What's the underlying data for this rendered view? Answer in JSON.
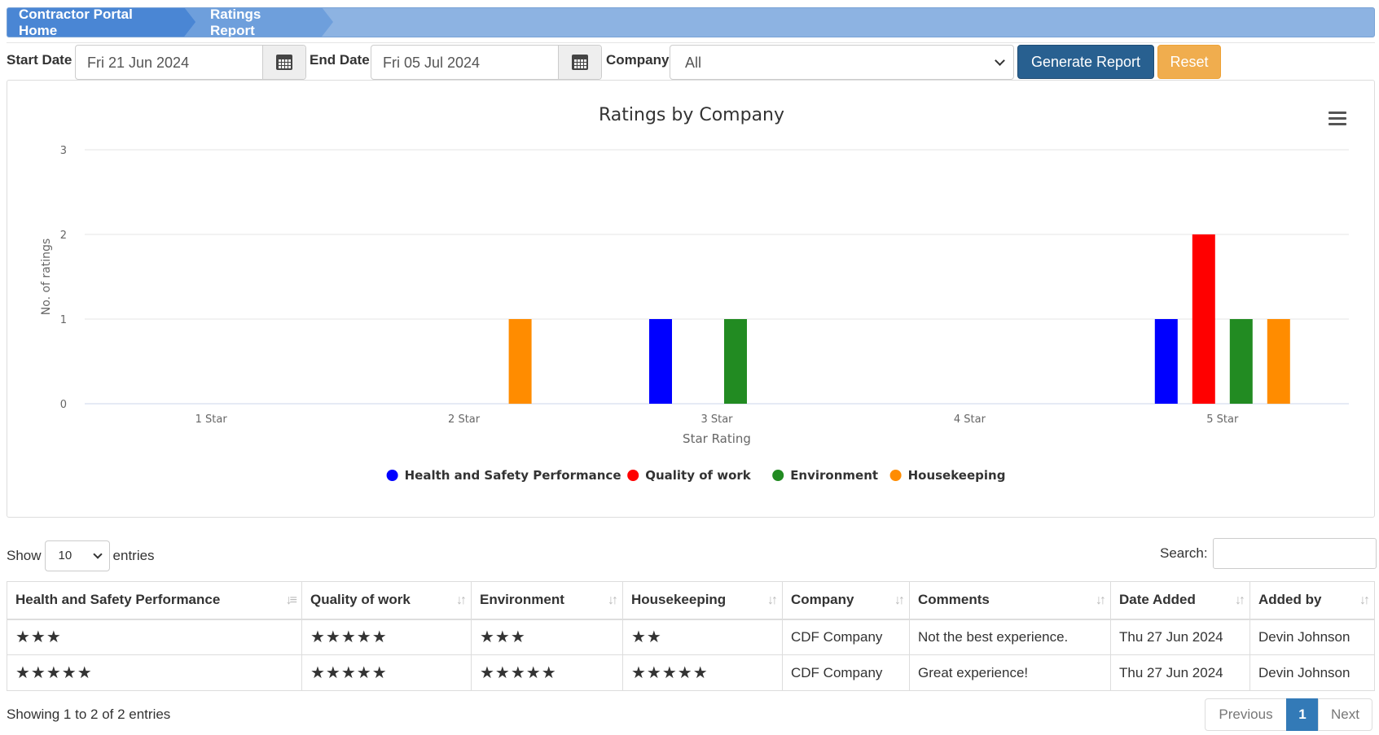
{
  "breadcrumb": {
    "home": "Contractor Portal Home",
    "current": "Ratings Report"
  },
  "filters": {
    "start_label": "Start Date",
    "start_value": "Fri 21 Jun 2024",
    "end_label": "End Date",
    "end_value": "Fri 05 Jul 2024",
    "company_label": "Company",
    "company_value": "All",
    "generate_label": "Generate Report",
    "reset_label": "Reset"
  },
  "chart_data": {
    "type": "bar",
    "title": "Ratings by Company",
    "xlabel": "Star Rating",
    "ylabel": "No. of ratings",
    "ylim": [
      0,
      3
    ],
    "yticks": [
      0,
      1,
      2,
      3
    ],
    "categories": [
      "1 Star",
      "2 Star",
      "3 Star",
      "4 Star",
      "5 Star"
    ],
    "series": [
      {
        "name": "Health and Safety Performance",
        "color": "#0000ff",
        "values": [
          0,
          0,
          1,
          0,
          1
        ]
      },
      {
        "name": "Quality of work",
        "color": "#ff0000",
        "values": [
          0,
          0,
          0,
          0,
          2
        ]
      },
      {
        "name": "Environment",
        "color": "#228b22",
        "values": [
          0,
          0,
          1,
          0,
          1
        ]
      },
      {
        "name": "Housekeeping",
        "color": "#ff8c00",
        "values": [
          0,
          1,
          0,
          0,
          1
        ]
      }
    ],
    "grid": true,
    "legend": "bottom-center"
  },
  "table_controls": {
    "show_label": "Show",
    "entries_value": "10",
    "entries_label": "entries",
    "search_label": "Search:"
  },
  "table": {
    "headers": [
      "Health and Safety Performance",
      "Quality of work",
      "Environment",
      "Housekeeping",
      "Company",
      "Comments",
      "Date Added",
      "Added by"
    ],
    "rows": [
      {
        "hs": "★★★",
        "quality": "★★★★★",
        "env": "★★★",
        "house": "★★",
        "company": "CDF Company",
        "comments": "Not the best experience.",
        "date": "Thu 27 Jun 2024",
        "added_by": "Devin Johnson"
      },
      {
        "hs": "★★★★★",
        "quality": "★★★★★",
        "env": "★★★★★",
        "house": "★★★★★",
        "company": "CDF Company",
        "comments": "Great experience!",
        "date": "Thu 27 Jun 2024",
        "added_by": "Devin Johnson"
      }
    ]
  },
  "footer": {
    "info": "Showing 1 to 2 of 2 entries",
    "previous": "Previous",
    "page": "1",
    "next": "Next"
  }
}
